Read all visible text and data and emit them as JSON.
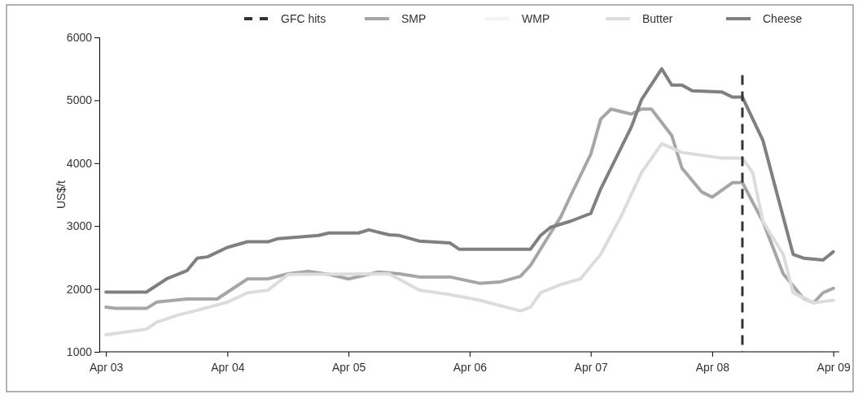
{
  "chart_data": {
    "type": "line",
    "ylabel": "US$/t",
    "xlim": [
      "2003-03-12",
      "2009-04-19"
    ],
    "xticks": [
      {
        "value": "2003-04",
        "label": "Apr 03"
      },
      {
        "value": "2004-04",
        "label": "Apr 04"
      },
      {
        "value": "2005-04",
        "label": "Apr 05"
      },
      {
        "value": "2006-04",
        "label": "Apr 06"
      },
      {
        "value": "2007-04",
        "label": "Apr 07"
      },
      {
        "value": "2008-04",
        "label": "Apr 08"
      },
      {
        "value": "2009-04",
        "label": "Apr 09"
      }
    ],
    "ylim": [
      1000,
      6000
    ],
    "yticks": [
      1000,
      2000,
      3000,
      4000,
      5000,
      6000
    ],
    "grid": false,
    "legend": "top",
    "line_style": "solid",
    "marker": "none",
    "ref_lines": [
      {
        "axis": "x",
        "value": "2008-07",
        "label": "GFC hits",
        "color": "#333333",
        "line_style": "dashed"
      }
    ],
    "series": [
      {
        "name": "SMP",
        "color": "#a6a6a6",
        "x": [
          "2003-04",
          "2003-05",
          "2003-08",
          "2003-09",
          "2003-12",
          "2004-03",
          "2004-06",
          "2004-08",
          "2004-10",
          "2004-12",
          "2005-02",
          "2005-04",
          "2005-07",
          "2005-09",
          "2005-11",
          "2006-02",
          "2006-05",
          "2006-07",
          "2006-09",
          "2006-10",
          "2006-12",
          "2007-01",
          "2007-02",
          "2007-04",
          "2007-05",
          "2007-06",
          "2007-08",
          "2007-09",
          "2007-10",
          "2007-12",
          "2008-01",
          "2008-03",
          "2008-04",
          "2008-06",
          "2008-07",
          "2008-09",
          "2008-11",
          "2009-01",
          "2009-02",
          "2009-03",
          "2009-04"
        ],
        "values": [
          1710,
          1690,
          1690,
          1790,
          1840,
          1840,
          2160,
          2160,
          2240,
          2280,
          2230,
          2160,
          2270,
          2240,
          2190,
          2190,
          2090,
          2110,
          2200,
          2370,
          2890,
          3150,
          3500,
          4140,
          4700,
          4860,
          4780,
          4860,
          4860,
          4440,
          3920,
          3540,
          3460,
          3690,
          3690,
          3070,
          2240,
          1850,
          1780,
          1940,
          2010
        ]
      },
      {
        "color": "#f4f4f4",
        "name": "WMP"
      },
      {
        "name": "Butter",
        "color": "#dcdcdc",
        "x": [
          "2003-04",
          "2003-08",
          "2003-09",
          "2003-11",
          "2004-01",
          "2004-04",
          "2004-06",
          "2004-08",
          "2004-10",
          "2005-08",
          "2005-11",
          "2006-02",
          "2006-05",
          "2006-09",
          "2006-10",
          "2006-11",
          "2007-01",
          "2007-03",
          "2007-05",
          "2007-07",
          "2007-09",
          "2007-11",
          "2008-01",
          "2008-05",
          "2008-07",
          "2008-08",
          "2008-09",
          "2008-11",
          "2008-12",
          "2009-02",
          "2009-04"
        ],
        "values": [
          1270,
          1360,
          1470,
          1580,
          1660,
          1790,
          1940,
          1980,
          2230,
          2240,
          1980,
          1910,
          1820,
          1650,
          1710,
          1940,
          2070,
          2160,
          2550,
          3150,
          3850,
          4310,
          4170,
          4080,
          4080,
          3850,
          3070,
          2550,
          1940,
          1780,
          1820
        ]
      },
      {
        "name": "Cheese",
        "color": "#808080",
        "x": [
          "2003-04",
          "2003-08",
          "2003-10",
          "2003-12",
          "2004-01",
          "2004-02",
          "2004-04",
          "2004-06",
          "2004-08",
          "2004-09",
          "2005-01",
          "2005-02",
          "2005-05",
          "2005-06",
          "2005-08",
          "2005-09",
          "2005-11",
          "2006-02",
          "2006-03",
          "2006-10",
          "2006-11",
          "2006-12",
          "2007-02",
          "2007-04",
          "2007-05",
          "2007-08",
          "2007-09",
          "2007-11",
          "2007-12",
          "2008-01",
          "2008-02",
          "2008-05",
          "2008-06",
          "2008-07",
          "2008-09",
          "2008-10",
          "2008-12",
          "2009-01",
          "2009-03",
          "2009-04"
        ],
        "values": [
          1950,
          1950,
          2160,
          2290,
          2490,
          2510,
          2660,
          2750,
          2750,
          2800,
          2850,
          2890,
          2890,
          2940,
          2860,
          2850,
          2760,
          2730,
          2630,
          2630,
          2850,
          2980,
          3080,
          3200,
          3590,
          4570,
          5010,
          5500,
          5240,
          5240,
          5150,
          5130,
          5050,
          5050,
          4360,
          3760,
          2550,
          2490,
          2460,
          2590
        ]
      }
    ]
  }
}
